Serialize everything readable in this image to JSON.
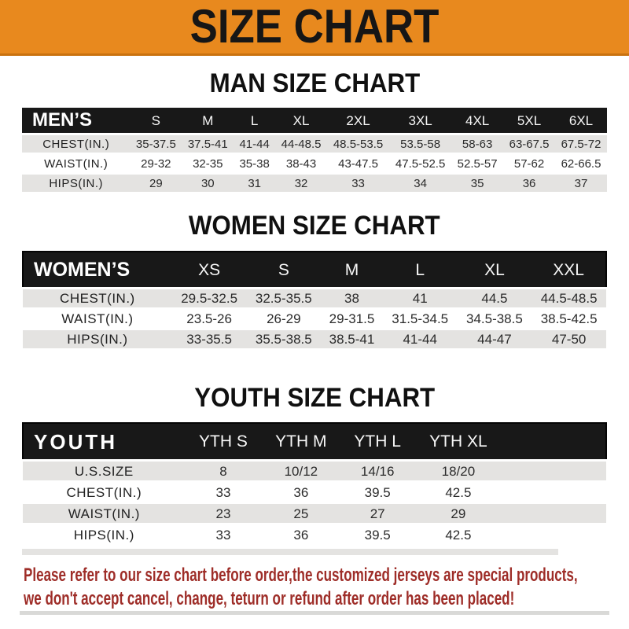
{
  "banner": {
    "title": "SIZE CHART",
    "bg_color": "#E8891E",
    "title_color": "#161616"
  },
  "sections": [
    {
      "heading": "MAN SIZE CHART",
      "table": {
        "corner_label": "MEN’S",
        "columns": [
          "S",
          "M",
          "L",
          "XL",
          "2XL",
          "3XL",
          "4XL",
          "5XL",
          "6XL"
        ],
        "rows": [
          {
            "label": "CHEST(IN.)",
            "values": [
              "35-37.5",
              "37.5-41",
              "41-44",
              "44-48.5",
              "48.5-53.5",
              "53.5-58",
              "58-63",
              "63-67.5",
              "67.5-72"
            ]
          },
          {
            "label": "WAIST(IN.)",
            "values": [
              "29-32",
              "32-35",
              "35-38",
              "38-43",
              "43-47.5",
              "47.5-52.5",
              "52.5-57",
              "57-62",
              "62-66.5"
            ]
          },
          {
            "label": "HIPS(IN.)",
            "values": [
              "29",
              "30",
              "31",
              "32",
              "33",
              "34",
              "35",
              "36",
              "37"
            ]
          }
        ]
      }
    },
    {
      "heading": "WOMEN SIZE CHART",
      "table": {
        "corner_label": "WOMEN’S",
        "columns": [
          "XS",
          "S",
          "M",
          "L",
          "XL",
          "XXL"
        ],
        "rows": [
          {
            "label": "CHEST(IN.)",
            "values": [
              "29.5-32.5",
              "32.5-35.5",
              "38",
              "41",
              "44.5",
              "44.5-48.5"
            ]
          },
          {
            "label": "WAIST(IN.)",
            "values": [
              "23.5-26",
              "26-29",
              "29-31.5",
              "31.5-34.5",
              "34.5-38.5",
              "38.5-42.5"
            ]
          },
          {
            "label": "HIPS(IN.)",
            "values": [
              "33-35.5",
              "35.5-38.5",
              "38.5-41",
              "41-44",
              "44-47",
              "47-50"
            ]
          }
        ]
      }
    },
    {
      "heading": "YOUTH SIZE CHART",
      "table": {
        "corner_label": "YOUTH",
        "columns": [
          "YTH S",
          "YTH M",
          "YTH L",
          "YTH XL"
        ],
        "rows": [
          {
            "label": "U.S.SIZE",
            "values": [
              "8",
              "10/12",
              "14/16",
              "18/20"
            ]
          },
          {
            "label": "CHEST(IN.)",
            "values": [
              "33",
              "36",
              "39.5",
              "42.5"
            ]
          },
          {
            "label": "WAIST(IN.)",
            "values": [
              "23",
              "25",
              "27",
              "29"
            ]
          },
          {
            "label": "HIPS(IN.)",
            "values": [
              "33",
              "36",
              "39.5",
              "42.5"
            ]
          }
        ]
      }
    }
  ],
  "footer": {
    "lines": [
      "Please refer to our size chart before order,the customized jerseys are special products,",
      "we don't accept cancel, change, teturn or refund after order has been placed!"
    ],
    "text_color": "#9E2D28"
  }
}
